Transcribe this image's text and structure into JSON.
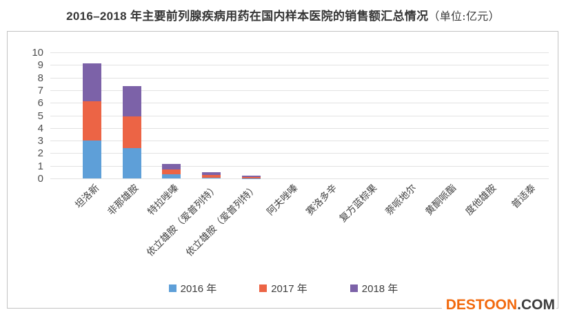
{
  "title": {
    "text": "2016–2018 年主要前列腺疾病用药在国内样本医院的销售额汇总情况",
    "unit": "（单位:亿元）"
  },
  "watermark": {
    "brand": "DESTOON",
    "tld": ".COM",
    "brand_color": "#f2690d",
    "tld_color": "#3c3c3c"
  },
  "colors": {
    "series_2016": "#5e9fd8",
    "series_2017": "#ec6445",
    "series_2018": "#7c62a8",
    "gridline": "#e2e2e2",
    "chart_border": "#c2c2c2"
  },
  "chart_data": {
    "type": "bar",
    "stacked": true,
    "title": "2016–2018 年主要前列腺疾病用药在国内样本医院的销售额汇总情况（单位:亿元）",
    "xlabel": "",
    "ylabel": "",
    "ylim": [
      0,
      10
    ],
    "ytick_interval": 1,
    "yticks": [
      0,
      1,
      2,
      3,
      4,
      5,
      6,
      7,
      8,
      9,
      10
    ],
    "grid": true,
    "legend_position": "bottom",
    "categories": [
      "坦洛新",
      "非那雄胺",
      "特拉唑嗪",
      "依立雄胺（爱普列特）",
      "依立雄胺（爱普列特）",
      "阿夫唑嗪",
      "赛洛多辛",
      "复方蓝棕果",
      "萘哌地尔",
      "黄酮哌酯",
      "度他雄胺",
      "普适泰"
    ],
    "series": [
      {
        "name": "2016 年",
        "color": "#5e9fd8",
        "values": [
          3.0,
          2.4,
          0.33,
          0.03,
          0.02,
          0,
          0,
          0,
          0,
          0,
          0,
          0
        ]
      },
      {
        "name": "2017 年",
        "color": "#ec6445",
        "values": [
          3.1,
          2.5,
          0.38,
          0.25,
          0.07,
          0,
          0,
          0,
          0,
          0,
          0,
          0
        ]
      },
      {
        "name": "2018 年",
        "color": "#7c62a8",
        "values": [
          3.0,
          2.4,
          0.44,
          0.22,
          0.11,
          0,
          0,
          0,
          0,
          0,
          0,
          0
        ]
      }
    ],
    "totals": [
      9.1,
      7.3,
      1.15,
      0.5,
      0.2,
      0,
      0,
      0,
      0,
      0,
      0,
      0
    ]
  }
}
